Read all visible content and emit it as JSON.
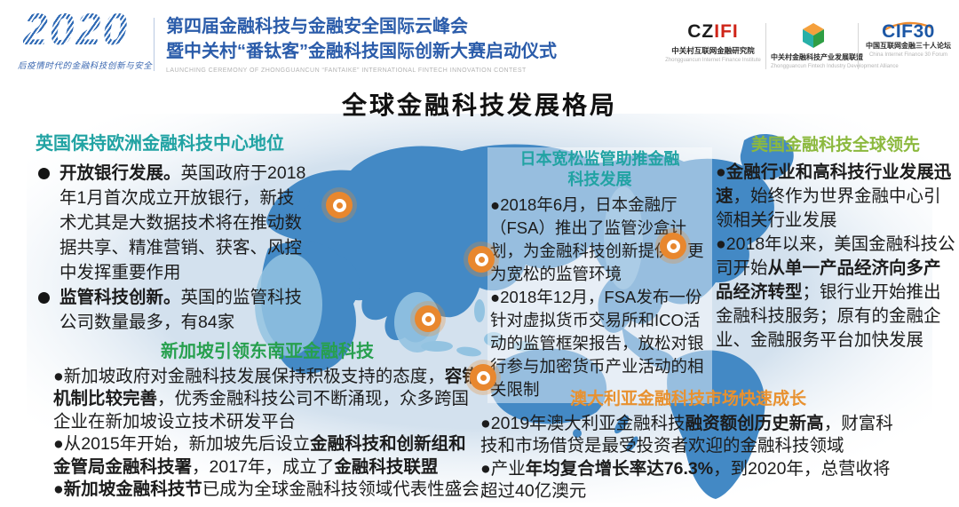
{
  "colors": {
    "header_blue": "#2b5caa",
    "teal_heading": "#21a3a3",
    "olive_heading": "#8cb93e",
    "green_heading": "#27a04e",
    "orange_heading": "#e8912f",
    "marker_orange": "#e8872e",
    "map_land": "#4389c5",
    "map_land_light": "#93c3e1",
    "ocean": "#d3e1ee"
  },
  "header": {
    "year_logo": "2020",
    "slogan": "后疫情时代的金融科技创新与安全",
    "title_line1": "第四届金融科技与金融安全国际云峰会",
    "title_line2": "暨中关村“番钛客”金融科技国际创新大赛启动仪式",
    "title_en": "LAUNCHING CEREMONY OF ZHONGGUANCUN “FANTAIKE” INTERNATIONAL FINTECH INNOVATION CONTEST",
    "logos": [
      {
        "mark_black": "CZ",
        "mark_red": "IFI",
        "cn": "中关村互联网金融研究院",
        "en": "Zhongguancun Internet Finance Institute"
      },
      {
        "cn": "中关村金融科技产业发展联盟",
        "en": "Zhongguancun Fintech Industry Development Alliance"
      },
      {
        "mark": "CIF30",
        "cn": "中国互联网金融三十人论坛",
        "en": "China Internet Finance 30 Forum"
      }
    ]
  },
  "page_title": "全球金融科技发展格局",
  "map": {
    "markers": [
      {
        "name": "europe-marker"
      },
      {
        "name": "japan-marker"
      },
      {
        "name": "north-america-marker"
      },
      {
        "name": "southeast-asia-marker"
      },
      {
        "name": "australia-marker"
      }
    ]
  },
  "regions": [
    {
      "id": "uk",
      "heading": "英国保持欧洲金融科技中心地位",
      "heading_color": "#21a3a3",
      "bullets": [
        [
          {
            "t": "开放银行发展。",
            "b": 1
          },
          {
            "t": "英国政府于2018年1月首次成立开放银行，新技术尤其是大数据技术将在推动数据共享、精准营销、获客、风控中发挥重要作用",
            "b": 0
          }
        ],
        [
          {
            "t": "监管科技创新。",
            "b": 1
          },
          {
            "t": "英国的监管科技公司数量最多，有84家",
            "b": 0
          }
        ]
      ]
    },
    {
      "id": "japan",
      "heading": "日本宽松监管助推金融科技发展",
      "heading_color": "#21a3a3",
      "bullets": [
        [
          {
            "t": "2018年6月，日本金融厅（FSA）推出了监管沙盒计划，为金融科技创新提供了更为宽松的监管环境",
            "b": 0
          }
        ],
        [
          {
            "t": "2018年12月，FSA发布一份针对虚拟货币交易所和ICO活动的监管框架报告，放松对银行参与加密货币产业活动的相关限制",
            "b": 0
          }
        ]
      ]
    },
    {
      "id": "usa",
      "heading": "美国金融科技全球领先",
      "heading_color": "#8cb93e",
      "bullets": [
        [
          {
            "t": "金融行业和高科技行业发展迅速",
            "b": 1
          },
          {
            "t": "，始终作为世界金融中心引领相关行业发展",
            "b": 0
          }
        ],
        [
          {
            "t": "2018年以来，美国金融科技公司开始",
            "b": 0
          },
          {
            "t": "从单一产品经济向多产品经济转型",
            "b": 1
          },
          {
            "t": "；银行业开始推出金融科技服务；原有的金融企业、金融服务平台加快发展",
            "b": 0
          }
        ]
      ]
    },
    {
      "id": "singapore",
      "heading": "新加坡引领东南亚金融科技",
      "heading_color": "#27a04e",
      "bullets": [
        [
          {
            "t": "新加坡政府对金融科技发展保持积极支持的态度，",
            "b": 0
          },
          {
            "t": "容错机制比较完善",
            "b": 1
          },
          {
            "t": "，优秀金融科技公司不断涌现，众多跨国企业在新加坡设立技术研发平台",
            "b": 0
          }
        ],
        [
          {
            "t": "从2015年开始，新加坡先后设立",
            "b": 0
          },
          {
            "t": "金融科技和创新组和金管局金融科技署",
            "b": 1
          },
          {
            "t": "，2017年，成立了",
            "b": 0
          },
          {
            "t": "金融科技联盟",
            "b": 1
          }
        ],
        [
          {
            "t": "新加坡金融科技节",
            "b": 1
          },
          {
            "t": "已成为全球金融科技领域代表性盛会",
            "b": 0
          }
        ]
      ]
    },
    {
      "id": "australia",
      "heading": "澳大利亚金融科技市场快速成长",
      "heading_color": "#e8912f",
      "bullets": [
        [
          {
            "t": "2019年澳大利亚金融科技",
            "b": 0
          },
          {
            "t": "融资额创历史新高",
            "b": 1
          },
          {
            "t": "，财富科技和市场借贷是最受投资者欢迎的金融科技领域",
            "b": 0
          }
        ],
        [
          {
            "t": "产业",
            "b": 0
          },
          {
            "t": "年均复合增长率达76.3%",
            "b": 1
          },
          {
            "t": "，到2020年，总营收将超过40亿澳元",
            "b": 0
          }
        ]
      ]
    }
  ]
}
